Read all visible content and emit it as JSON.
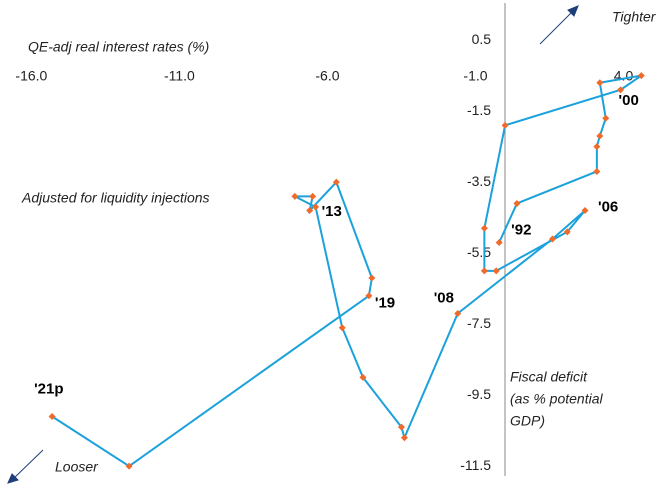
{
  "chart_data": {
    "type": "connected-scatter",
    "x_label": "QE-adj real interest rates (%)",
    "y_label": [
      "Fiscal deficit",
      "(as % potential",
      "GDP)"
    ],
    "annotations": {
      "tighter": "Tighter",
      "looser": "Looser",
      "adjusted": "Adjusted for liquidity injections"
    },
    "xlim": [
      -17.06,
      5.3
    ],
    "ylim": [
      -12.03,
      1.63
    ],
    "xticks": [
      {
        "value": -16,
        "label": "-16.0"
      },
      {
        "value": -11,
        "label": "-11.0"
      },
      {
        "value": -6,
        "label": "-6.0"
      },
      {
        "value": -1,
        "label": "-1.0"
      },
      {
        "value": 4,
        "label": "4.0"
      }
    ],
    "yticks": [
      0.5,
      -1.5,
      -3.5,
      -5.5,
      -7.5,
      -9.5,
      -11.5
    ],
    "line_color": "#1ba1dc",
    "marker_color": "#f06a2a",
    "x": [
      -0.2,
      0.4,
      3.1,
      3.1,
      3.2,
      3.4,
      3.2,
      4.6,
      3.9,
      0.0,
      -0.7,
      -0.7,
      -0.3,
      2.1,
      2.7,
      1.6,
      -1.6,
      -3.4,
      -3.5,
      -4.8,
      -5.5,
      -6.4,
      -7.1,
      -6.5,
      -6.6,
      -5.7,
      -4.5,
      -4.6,
      -12.7,
      -15.3
    ],
    "y": [
      -5.2,
      -4.1,
      -3.2,
      -2.5,
      -2.2,
      -1.7,
      -0.7,
      -0.5,
      -0.9,
      -1.9,
      -4.8,
      -6.0,
      -6.0,
      -4.9,
      -4.3,
      -5.1,
      -7.2,
      -10.7,
      -10.4,
      -9.0,
      -7.6,
      -4.2,
      -3.9,
      -3.9,
      -4.3,
      -3.5,
      -6.2,
      -6.7,
      -11.5,
      -10.1
    ],
    "point_labels": [
      "'92",
      null,
      null,
      null,
      null,
      null,
      null,
      null,
      "'00",
      null,
      null,
      null,
      null,
      null,
      "'06",
      null,
      "'08",
      null,
      null,
      null,
      null,
      "'13",
      null,
      null,
      null,
      null,
      null,
      "'19",
      null,
      "'21p"
    ]
  }
}
